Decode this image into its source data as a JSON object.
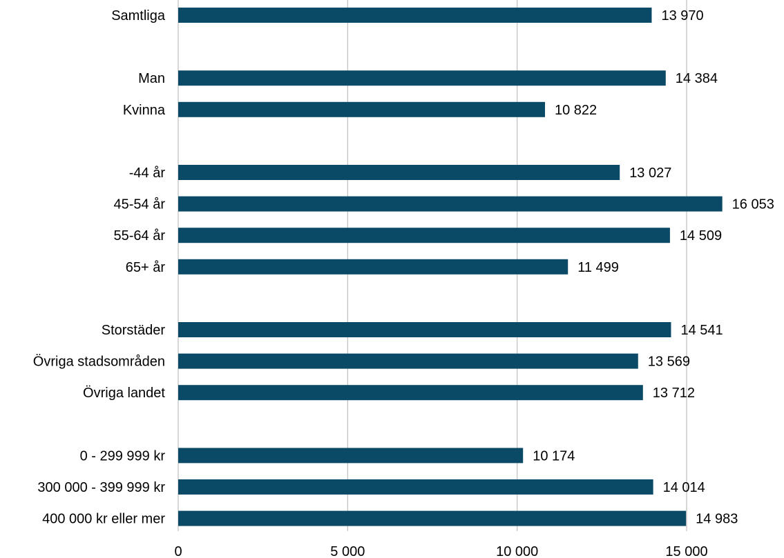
{
  "chart_data": {
    "type": "bar",
    "orientation": "horizontal",
    "title": "",
    "xlabel": "",
    "ylabel": "",
    "xlim": [
      0,
      16000
    ],
    "grid": "vertical",
    "legend": "none",
    "colors": {
      "bar": "#0b4a66",
      "grid": "#bfbfbf",
      "axis": "#bfbfbf"
    },
    "x_ticks": [
      {
        "value": 0,
        "label": "0"
      },
      {
        "value": 5000,
        "label": "5 000"
      },
      {
        "value": 10000,
        "label": "10 000"
      },
      {
        "value": 15000,
        "label": "15 000"
      }
    ],
    "categories": [
      "Samtliga",
      "",
      "Man",
      "Kvinna",
      "",
      "-44 år",
      "45-54 år",
      "55-64 år",
      "65+ år",
      "",
      "Storstäder",
      "Övriga stadsområden",
      "Övriga landet",
      "",
      "0 - 299 999 kr",
      "300 000 - 399 999 kr",
      "400 000 kr eller mer"
    ],
    "values": [
      13970,
      null,
      14384,
      10822,
      null,
      13027,
      16053,
      14509,
      11499,
      null,
      14541,
      13569,
      13712,
      null,
      10174,
      14014,
      14983
    ],
    "value_labels": [
      "13 970",
      "",
      "14 384",
      "10 822",
      "",
      "13 027",
      "16 053",
      "14 509",
      "11 499",
      "",
      "14 541",
      "13 569",
      "13 712",
      "",
      "10 174",
      "14 014",
      "14 983"
    ]
  }
}
